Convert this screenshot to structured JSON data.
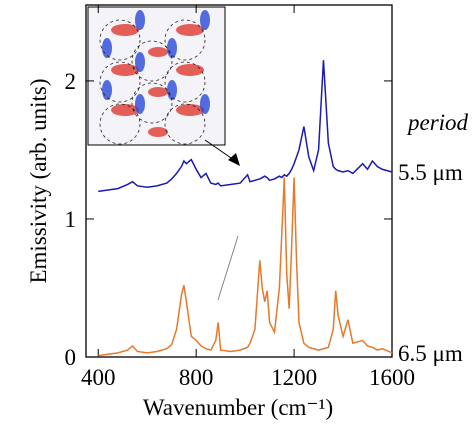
{
  "chart_data": {
    "type": "line",
    "x_label": "Wavenumber (cm⁻¹)",
    "y_label": "Emissivity (arb. units)",
    "legend_title": "period",
    "x": [
      400,
      440,
      480,
      520,
      540,
      560,
      600,
      640,
      680,
      700,
      720,
      740,
      750,
      760,
      780,
      800,
      820,
      840,
      860,
      880,
      890,
      900,
      940,
      980,
      1010,
      1020,
      1040,
      1060,
      1070,
      1080,
      1090,
      1100,
      1120,
      1140,
      1150,
      1160,
      1170,
      1180,
      1190,
      1200,
      1210,
      1220,
      1240,
      1260,
      1280,
      1300,
      1320,
      1340,
      1360,
      1370,
      1380,
      1400,
      1420,
      1440,
      1480,
      1500,
      1520,
      1540,
      1560,
      1600
    ],
    "series": [
      {
        "name": "5.5 μm",
        "color": "#1a1ab4",
        "values": [
          1.2,
          1.21,
          1.22,
          1.25,
          1.27,
          1.24,
          1.23,
          1.24,
          1.26,
          1.29,
          1.33,
          1.38,
          1.42,
          1.4,
          1.43,
          1.36,
          1.3,
          1.33,
          1.26,
          1.25,
          1.26,
          1.24,
          1.25,
          1.26,
          1.32,
          1.27,
          1.28,
          1.29,
          1.3,
          1.31,
          1.3,
          1.28,
          1.29,
          1.31,
          1.3,
          1.32,
          1.31,
          1.33,
          1.36,
          1.4,
          1.45,
          1.5,
          1.67,
          1.45,
          1.35,
          1.5,
          2.15,
          1.55,
          1.38,
          1.36,
          1.35,
          1.34,
          1.35,
          1.33,
          1.4,
          1.36,
          1.42,
          1.38,
          1.36,
          1.34
        ]
      },
      {
        "name": "6.5 μm",
        "color": "#e8782a",
        "values": [
          0.01,
          0.02,
          0.03,
          0.05,
          0.08,
          0.04,
          0.03,
          0.04,
          0.06,
          0.09,
          0.2,
          0.45,
          0.52,
          0.4,
          0.15,
          0.12,
          0.08,
          0.06,
          0.05,
          0.12,
          0.25,
          0.05,
          0.04,
          0.05,
          0.07,
          0.1,
          0.2,
          0.7,
          0.5,
          0.4,
          0.48,
          0.25,
          0.18,
          0.5,
          0.9,
          1.3,
          0.6,
          0.35,
          0.8,
          1.3,
          0.7,
          0.25,
          0.1,
          0.07,
          0.06,
          0.05,
          0.06,
          0.07,
          0.2,
          0.48,
          0.3,
          0.15,
          0.27,
          0.1,
          0.12,
          0.08,
          0.07,
          0.05,
          0.06,
          0.03
        ]
      }
    ],
    "xlim": [
      350,
      1600
    ],
    "ylim": [
      0,
      2.55
    ],
    "xticks": [
      400,
      800,
      1200,
      1600
    ],
    "yticks": [
      0,
      1,
      2
    ]
  }
}
